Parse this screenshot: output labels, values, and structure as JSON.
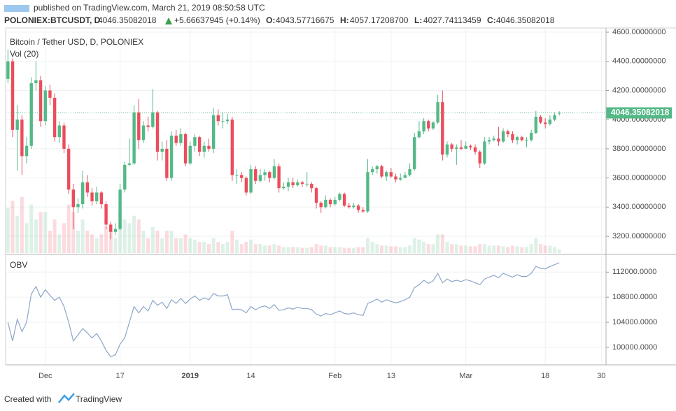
{
  "header": {
    "published": "published on TradingView.com, March 21, 2019 08:50:58 UTC",
    "symbol": "POLONIEX:BTCUSDT, D",
    "last": "4046.35082018",
    "change": "+5.66637945 (+0.14%)",
    "ohlc_labels": [
      "O:",
      "H:",
      "L:",
      "C:"
    ],
    "ohlc_values": [
      "4043.57716675",
      "4057.17208700",
      "4027.74113459",
      "4046.35082018"
    ]
  },
  "footer": {
    "created": "Created with",
    "brand": "TradingView"
  },
  "chart_data": {
    "type": "candlestick",
    "title": "Bitcoin / Tether USD, D, POLONIEX",
    "grid": true,
    "up_color": "#53b987",
    "down_color": "#eb4d5c",
    "xlim": [
      -0.5,
      128
    ],
    "xticks": [
      {
        "value": 8,
        "label": "Dec"
      },
      {
        "value": 24,
        "label": "17"
      },
      {
        "value": 39,
        "label": "2019"
      },
      {
        "value": 52,
        "label": "14"
      },
      {
        "value": 70,
        "label": "Feb"
      },
      {
        "value": 82,
        "label": "13"
      },
      {
        "value": 98,
        "label": "Mar"
      },
      {
        "value": 115,
        "label": "18"
      },
      {
        "value": 127,
        "label": "30"
      }
    ],
    "ylim": [
      3085,
      4629
    ],
    "yticks": [
      {
        "value": 3200,
        "label": "3200.00000000"
      },
      {
        "value": 3400,
        "label": "3400.00000000"
      },
      {
        "value": 3600,
        "label": "3600.00000000"
      },
      {
        "value": 3800,
        "label": "3800.00000000"
      },
      {
        "value": 4000,
        "label": "4000.00000000"
      },
      {
        "value": 4200,
        "label": "4200.00000000"
      },
      {
        "value": 4400,
        "label": "4400.00000000"
      },
      {
        "value": 4600,
        "label": "4600.00000000"
      }
    ],
    "open": [
      4280,
      4400,
      3930,
      4000,
      3750,
      3820,
      4250,
      4270,
      3990,
      4200,
      4150,
      3880,
      3960,
      3800,
      3520,
      3400,
      3420,
      3570,
      3500,
      3440,
      3500,
      3420,
      3280,
      3230,
      3250,
      3520,
      3690,
      3700,
      4050,
      3860,
      3960,
      3950,
      4050,
      3780,
      3800,
      3600,
      3890,
      3840,
      3900,
      3700,
      3820,
      3880,
      3780,
      3820,
      3800,
      4030,
      3990,
      3990,
      4000,
      3620,
      3620,
      3600,
      3500,
      3660,
      3580,
      3620,
      3640,
      3600,
      3680,
      3530,
      3540,
      3570,
      3550,
      3570,
      3560,
      3560,
      3530,
      3430,
      3400,
      3450,
      3420,
      3450,
      3490,
      3410,
      3400,
      3410,
      3380,
      3370,
      3640,
      3660,
      3680,
      3610,
      3640,
      3610,
      3590,
      3600,
      3620,
      3660,
      3880,
      3920,
      3990,
      3940,
      3980,
      4120,
      3760,
      3830,
      3800,
      3810,
      3800,
      3820,
      3810,
      3780,
      3700,
      3850,
      3860,
      3870,
      3850,
      3920,
      3900,
      3860,
      3880,
      3860,
      3860,
      3910,
      4020,
      3980,
      3970,
      4000,
      4043.57716675
    ],
    "high": [
      4480,
      4420,
      4100,
      4030,
      3880,
      4290,
      4400,
      4300,
      4230,
      4240,
      4180,
      3990,
      3980,
      3830,
      3560,
      3460,
      3650,
      3620,
      3530,
      3540,
      3510,
      3440,
      3300,
      3290,
      3560,
      3710,
      3870,
      4100,
      4140,
      3990,
      4020,
      4210,
      4060,
      3850,
      3860,
      3920,
      3930,
      3940,
      3910,
      3850,
      3900,
      3890,
      3850,
      3870,
      4080,
      4070,
      4050,
      4040,
      4020,
      3660,
      3640,
      3610,
      3690,
      3680,
      3660,
      3660,
      3650,
      3730,
      3700,
      3570,
      3600,
      3600,
      3590,
      3580,
      3640,
      3570,
      3540,
      3440,
      3480,
      3460,
      3470,
      3500,
      3500,
      3430,
      3430,
      3420,
      3400,
      3730,
      3680,
      3690,
      3690,
      3650,
      3670,
      3630,
      3630,
      3640,
      3700,
      3910,
      3990,
      4010,
      4000,
      3990,
      4170,
      4200,
      3850,
      3840,
      3830,
      3860,
      3850,
      3830,
      3830,
      3790,
      3880,
      3880,
      3890,
      3950,
      3940,
      3930,
      3920,
      3890,
      3890,
      3880,
      3930,
      4060,
      4030,
      4010,
      4030,
      4050,
      4057.172087
    ],
    "low": [
      4250,
      3880,
      3650,
      3620,
      3700,
      3800,
      4200,
      3950,
      3960,
      4100,
      3850,
      3840,
      3770,
      3490,
      3250,
      3360,
      3390,
      3470,
      3410,
      3420,
      3390,
      3250,
      3180,
      3210,
      3240,
      3500,
      3680,
      3690,
      3800,
      3840,
      3920,
      3940,
      3720,
      3720,
      3580,
      3580,
      3820,
      3820,
      3680,
      3690,
      3780,
      3750,
      3740,
      3780,
      3770,
      3960,
      3940,
      3970,
      3580,
      3560,
      3570,
      3480,
      3490,
      3560,
      3570,
      3580,
      3570,
      3590,
      3500,
      3520,
      3510,
      3530,
      3540,
      3540,
      3540,
      3500,
      3390,
      3360,
      3390,
      3400,
      3410,
      3440,
      3400,
      3390,
      3390,
      3360,
      3360,
      3360,
      3620,
      3630,
      3600,
      3580,
      3600,
      3570,
      3580,
      3600,
      3610,
      3650,
      3870,
      3900,
      3920,
      3930,
      3970,
      3720,
      3740,
      3780,
      3690,
      3790,
      3800,
      3790,
      3760,
      3670,
      3690,
      3830,
      3850,
      3820,
      3840,
      3880,
      3840,
      3830,
      3850,
      3810,
      3850,
      3900,
      3970,
      3940,
      3960,
      3990,
      4027.74113459
    ],
    "close": [
      4400,
      3930,
      4000,
      3750,
      3820,
      4250,
      4270,
      3990,
      4200,
      4150,
      3880,
      3960,
      3800,
      3520,
      3400,
      3420,
      3570,
      3500,
      3440,
      3500,
      3420,
      3280,
      3230,
      3250,
      3520,
      3690,
      3700,
      4050,
      3860,
      3960,
      3950,
      4050,
      3780,
      3800,
      3600,
      3890,
      3840,
      3900,
      3700,
      3820,
      3880,
      3780,
      3820,
      3800,
      4030,
      3990,
      3990,
      4000,
      3620,
      3620,
      3600,
      3500,
      3660,
      3580,
      3620,
      3640,
      3600,
      3680,
      3530,
      3540,
      3570,
      3550,
      3570,
      3560,
      3560,
      3530,
      3430,
      3400,
      3450,
      3420,
      3450,
      3490,
      3410,
      3400,
      3410,
      3380,
      3370,
      3640,
      3660,
      3680,
      3610,
      3640,
      3610,
      3590,
      3600,
      3620,
      3660,
      3880,
      3920,
      3990,
      3940,
      3980,
      4120,
      3760,
      3830,
      3800,
      3810,
      3800,
      3820,
      3810,
      3780,
      3700,
      3850,
      3860,
      3870,
      3850,
      3920,
      3900,
      3860,
      3880,
      3860,
      3860,
      3910,
      4020,
      3980,
      3970,
      4000,
      4030,
      4046.35082018
    ],
    "volume": {
      "name": "Vol (20)",
      "values": [
        60,
        70,
        50,
        75,
        40,
        65,
        45,
        55,
        55,
        30,
        45,
        25,
        40,
        65,
        55,
        30,
        45,
        30,
        25,
        20,
        25,
        35,
        30,
        20,
        55,
        45,
        40,
        50,
        45,
        30,
        20,
        35,
        30,
        20,
        30,
        30,
        20,
        20,
        25,
        20,
        18,
        15,
        15,
        12,
        20,
        15,
        12,
        15,
        30,
        18,
        12,
        15,
        18,
        12,
        12,
        10,
        10,
        12,
        10,
        8,
        8,
        8,
        8,
        7,
        7,
        8,
        12,
        10,
        10,
        8,
        8,
        8,
        7,
        7,
        7,
        8,
        8,
        20,
        15,
        12,
        10,
        10,
        9,
        9,
        8,
        8,
        10,
        20,
        18,
        15,
        12,
        12,
        25,
        25,
        15,
        12,
        12,
        10,
        10,
        9,
        9,
        12,
        12,
        10,
        10,
        10,
        9,
        8,
        10,
        9,
        8,
        8,
        12,
        20,
        12,
        10,
        10,
        8,
        5
      ]
    },
    "obv": {
      "name": "OBV",
      "color": "#8da6c8",
      "ylim": [
        97200,
        114600
      ],
      "yticks": [
        {
          "value": 100000,
          "label": "100000.0000"
        },
        {
          "value": 104000,
          "label": "104000.0000"
        },
        {
          "value": 108000,
          "label": "108000.0000"
        },
        {
          "value": 112000,
          "label": "112000.0000"
        }
      ],
      "values": [
        104000,
        101000,
        104500,
        102500,
        104000,
        108500,
        109700,
        108000,
        109200,
        108300,
        107500,
        108000,
        106500,
        104000,
        101000,
        102000,
        103000,
        102300,
        101500,
        102200,
        101000,
        99500,
        98500,
        98800,
        100500,
        101500,
        104000,
        106500,
        105500,
        106500,
        105800,
        107500,
        106700,
        107200,
        106200,
        107600,
        107000,
        107800,
        107000,
        107700,
        108200,
        107500,
        107900,
        107600,
        108600,
        108200,
        108200,
        108400,
        106000,
        106100,
        106000,
        105500,
        106500,
        106000,
        106400,
        106600,
        106200,
        106800,
        105900,
        106000,
        106300,
        106100,
        106400,
        106200,
        106200,
        106000,
        105300,
        105000,
        105400,
        105200,
        105500,
        105800,
        105400,
        105300,
        105500,
        105200,
        105100,
        107000,
        107300,
        107700,
        107200,
        107600,
        107300,
        107100,
        107300,
        107600,
        108000,
        109500,
        110000,
        110700,
        110200,
        110600,
        111800,
        110300,
        110900,
        110500,
        110700,
        110500,
        110800,
        110600,
        110300,
        110000,
        110900,
        111200,
        111500,
        111100,
        111800,
        111500,
        111200,
        111600,
        111300,
        111300,
        111800,
        112900,
        112600,
        112500,
        112900,
        113200,
        113500
      ]
    }
  }
}
